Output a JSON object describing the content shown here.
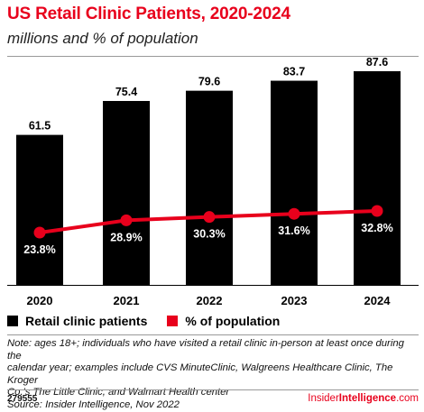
{
  "header": {
    "title": "US Retail Clinic Patients, 2020-2024",
    "subtitle": "millions and % of population"
  },
  "chart_data": {
    "type": "bar",
    "categories": [
      "2020",
      "2021",
      "2022",
      "2023",
      "2024"
    ],
    "series": [
      {
        "name": "Retail clinic patients",
        "type": "bar",
        "color": "#000000",
        "values": [
          61.5,
          75.4,
          79.6,
          83.7,
          87.6
        ],
        "labels": [
          "61.5",
          "75.4",
          "79.6",
          "83.7",
          "87.6"
        ]
      },
      {
        "name": "% of population",
        "type": "line",
        "color": "#e8001c",
        "values": [
          23.8,
          28.9,
          30.3,
          31.6,
          32.8
        ],
        "labels": [
          "23.8%",
          "28.9%",
          "30.3%",
          "31.6%",
          "32.8%"
        ]
      }
    ],
    "legend_position": "bottom-left",
    "grid": false
  },
  "legend": {
    "bar_label": "Retail clinic patients",
    "line_label": "% of population"
  },
  "note": {
    "line1": "Note: ages 18+; individuals who have visited a retail clinic in-person at least once during the",
    "line2": "calendar year; examples include CVS MinuteClinic, Walgreens Healthcare Clinic, The Kroger",
    "line3": "Co.'s The Little Clinic, and Walmart Health center",
    "source": "Source: Insider Intelligence, Nov 2022"
  },
  "footer": {
    "chart_id": "279555",
    "brand_part1": "Insider",
    "brand_part2": "Intelligence",
    "brand_part3": ".com"
  },
  "colors": {
    "accent": "#e8001c",
    "bar": "#000000"
  }
}
